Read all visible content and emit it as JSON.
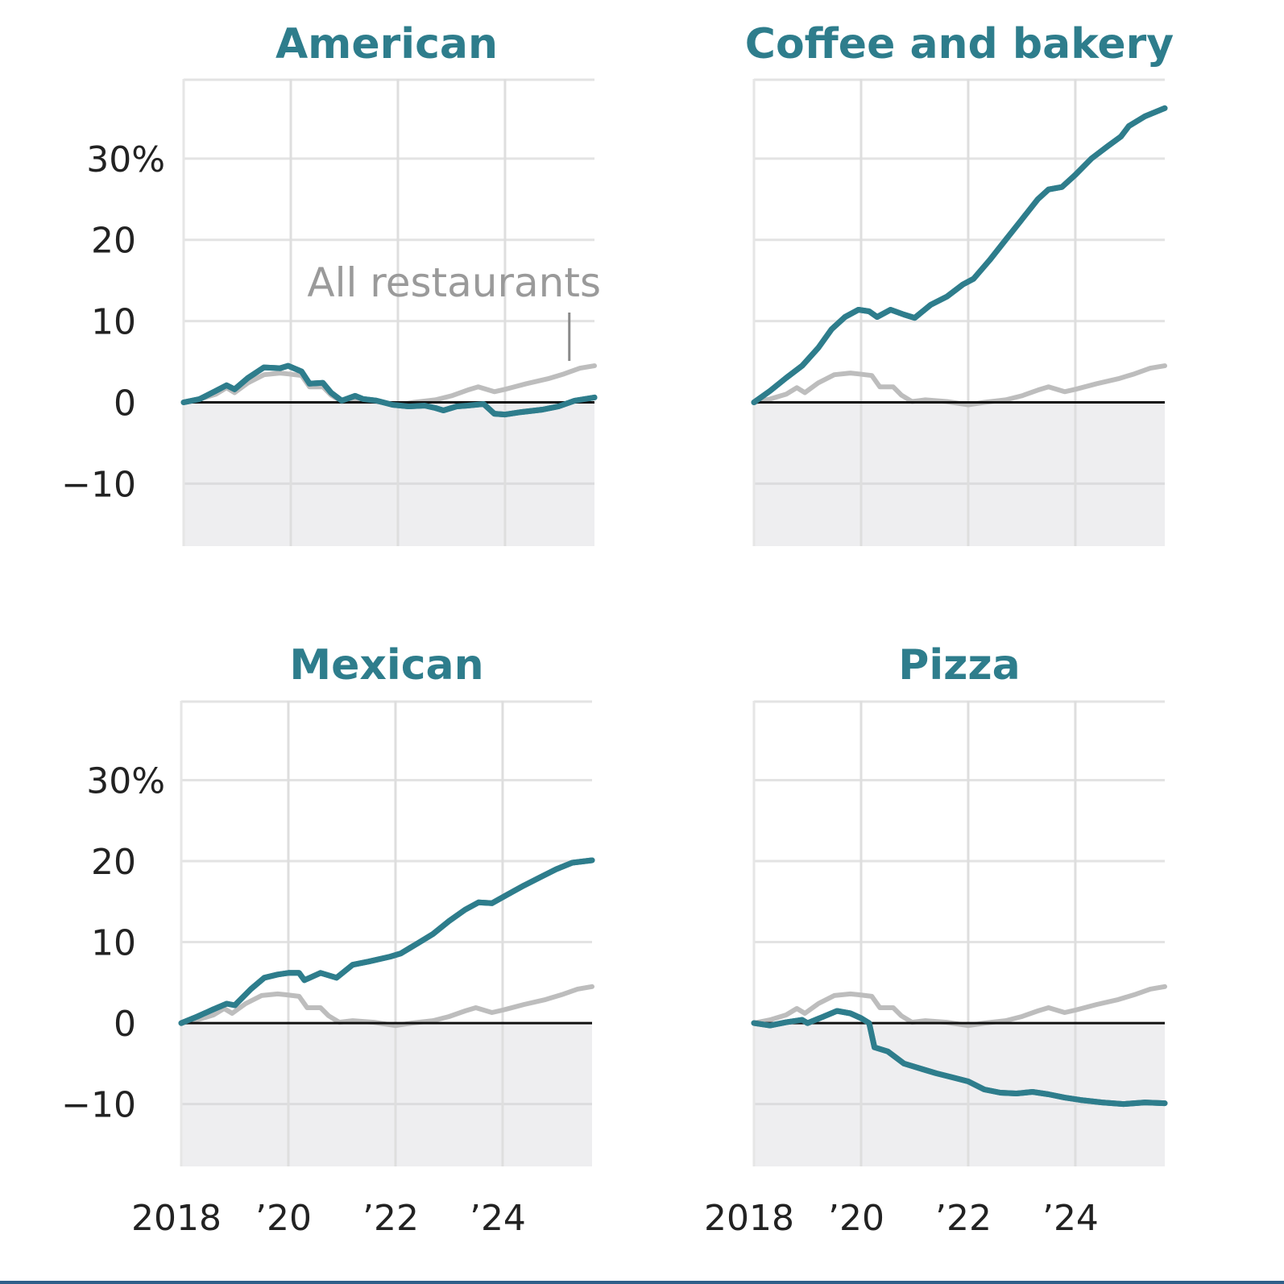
{
  "colors": {
    "accent": "#2e7d8c",
    "all_restaurants": "#bdbdbd",
    "annotation": "#9a9a9a",
    "grid": "#e3e3e3",
    "negative_fill": "#eeeef0",
    "zero_line": "#111111",
    "bottom_strip": "#2f5f8a"
  },
  "chart_data": [
    {
      "type": "line",
      "title": "American",
      "xlabel": "",
      "ylabel": "",
      "xlim": [
        2018,
        2025.67
      ],
      "ylim": [
        -17.7,
        39.8
      ],
      "y_ticks": [
        30,
        20,
        10,
        0,
        -10
      ],
      "y_tick_labels": [
        "30%",
        "20",
        "10",
        "0",
        "−10"
      ],
      "x_ticks": [
        2018,
        2020,
        2022,
        2024
      ],
      "x_tick_labels": [
        "2018",
        "’20",
        "’22",
        "’24"
      ],
      "grid": true,
      "annotation": {
        "text": "All restaurants",
        "x": 2025.2,
        "y": 4.5
      },
      "series": [
        {
          "name": "American",
          "points": [
            [
              2018,
              0
            ],
            [
              2018.3,
              0.4
            ],
            [
              2018.6,
              1.4
            ],
            [
              2018.8,
              2.1
            ],
            [
              2018.95,
              1.6
            ],
            [
              2019.2,
              3.0
            ],
            [
              2019.5,
              4.3
            ],
            [
              2019.8,
              4.2
            ],
            [
              2019.95,
              4.5
            ],
            [
              2020.2,
              3.8
            ],
            [
              2020.35,
              2.3
            ],
            [
              2020.6,
              2.4
            ],
            [
              2020.75,
              1.2
            ],
            [
              2020.95,
              0.2
            ],
            [
              2021.2,
              0.8
            ],
            [
              2021.35,
              0.4
            ],
            [
              2021.6,
              0.2
            ],
            [
              2021.9,
              -0.3
            ],
            [
              2022.2,
              -0.5
            ],
            [
              2022.5,
              -0.4
            ],
            [
              2022.7,
              -0.7
            ],
            [
              2022.85,
              -1.0
            ],
            [
              2023.1,
              -0.5
            ],
            [
              2023.3,
              -0.4
            ],
            [
              2023.6,
              -0.2
            ],
            [
              2023.8,
              -1.4
            ],
            [
              2024.0,
              -1.5
            ],
            [
              2024.3,
              -1.2
            ],
            [
              2024.7,
              -0.9
            ],
            [
              2025.0,
              -0.5
            ],
            [
              2025.3,
              0.2
            ],
            [
              2025.67,
              0.6
            ]
          ]
        },
        {
          "name": "All restaurants",
          "points": [
            [
              2018,
              0
            ],
            [
              2018.3,
              0.4
            ],
            [
              2018.6,
              1.0
            ],
            [
              2018.8,
              1.8
            ],
            [
              2018.95,
              1.2
            ],
            [
              2019.2,
              2.4
            ],
            [
              2019.5,
              3.4
            ],
            [
              2019.8,
              3.6
            ],
            [
              2019.95,
              3.5
            ],
            [
              2020.2,
              3.3
            ],
            [
              2020.35,
              1.9
            ],
            [
              2020.6,
              1.9
            ],
            [
              2020.75,
              0.9
            ],
            [
              2020.95,
              0.1
            ],
            [
              2021.2,
              0.3
            ],
            [
              2021.6,
              0.1
            ],
            [
              2021.9,
              -0.2
            ],
            [
              2022.0,
              -0.3
            ],
            [
              2022.3,
              0
            ],
            [
              2022.7,
              0.3
            ],
            [
              2023.0,
              0.8
            ],
            [
              2023.3,
              1.5
            ],
            [
              2023.5,
              1.9
            ],
            [
              2023.8,
              1.3
            ],
            [
              2024.0,
              1.6
            ],
            [
              2024.4,
              2.3
            ],
            [
              2024.8,
              2.9
            ],
            [
              2025.1,
              3.5
            ],
            [
              2025.4,
              4.2
            ],
            [
              2025.67,
              4.5
            ]
          ]
        }
      ]
    },
    {
      "type": "line",
      "title": "Coffee and bakery",
      "xlabel": "",
      "ylabel": "",
      "xlim": [
        2018,
        2025.67
      ],
      "ylim": [
        -17.7,
        39.8
      ],
      "y_ticks": [
        30,
        20,
        10,
        0,
        -10
      ],
      "x_ticks": [
        2018,
        2020,
        2022,
        2024
      ],
      "grid": true,
      "series": [
        {
          "name": "Coffee and bakery",
          "points": [
            [
              2018,
              0
            ],
            [
              2018.3,
              1.4
            ],
            [
              2018.6,
              3.0
            ],
            [
              2018.9,
              4.5
            ],
            [
              2019.2,
              6.7
            ],
            [
              2019.45,
              9.0
            ],
            [
              2019.7,
              10.5
            ],
            [
              2019.95,
              11.4
            ],
            [
              2020.15,
              11.2
            ],
            [
              2020.3,
              10.5
            ],
            [
              2020.55,
              11.4
            ],
            [
              2020.8,
              10.8
            ],
            [
              2021.0,
              10.4
            ],
            [
              2021.3,
              12.0
            ],
            [
              2021.6,
              13.0
            ],
            [
              2021.9,
              14.5
            ],
            [
              2022.1,
              15.2
            ],
            [
              2022.4,
              17.5
            ],
            [
              2022.7,
              20.0
            ],
            [
              2023.0,
              22.5
            ],
            [
              2023.3,
              25.0
            ],
            [
              2023.5,
              26.2
            ],
            [
              2023.75,
              26.5
            ],
            [
              2024.0,
              28.0
            ],
            [
              2024.3,
              30.0
            ],
            [
              2024.6,
              31.5
            ],
            [
              2024.85,
              32.7
            ],
            [
              2025.0,
              34.0
            ],
            [
              2025.3,
              35.2
            ],
            [
              2025.67,
              36.2
            ]
          ]
        },
        {
          "name": "All restaurants",
          "points": [
            [
              2018,
              0
            ],
            [
              2018.3,
              0.4
            ],
            [
              2018.6,
              1.0
            ],
            [
              2018.8,
              1.8
            ],
            [
              2018.95,
              1.2
            ],
            [
              2019.2,
              2.4
            ],
            [
              2019.5,
              3.4
            ],
            [
              2019.8,
              3.6
            ],
            [
              2019.95,
              3.5
            ],
            [
              2020.2,
              3.3
            ],
            [
              2020.35,
              1.9
            ],
            [
              2020.6,
              1.9
            ],
            [
              2020.75,
              0.9
            ],
            [
              2020.95,
              0.1
            ],
            [
              2021.2,
              0.3
            ],
            [
              2021.6,
              0.1
            ],
            [
              2021.9,
              -0.2
            ],
            [
              2022.0,
              -0.3
            ],
            [
              2022.3,
              0
            ],
            [
              2022.7,
              0.3
            ],
            [
              2023.0,
              0.8
            ],
            [
              2023.3,
              1.5
            ],
            [
              2023.5,
              1.9
            ],
            [
              2023.8,
              1.3
            ],
            [
              2024.0,
              1.6
            ],
            [
              2024.4,
              2.3
            ],
            [
              2024.8,
              2.9
            ],
            [
              2025.1,
              3.5
            ],
            [
              2025.4,
              4.2
            ],
            [
              2025.67,
              4.5
            ]
          ]
        }
      ]
    },
    {
      "type": "line",
      "title": "Mexican",
      "xlabel": "",
      "ylabel": "",
      "xlim": [
        2018,
        2025.67
      ],
      "ylim": [
        -17.7,
        39.8
      ],
      "y_ticks": [
        30,
        20,
        10,
        0,
        -10
      ],
      "y_tick_labels": [
        "30%",
        "20",
        "10",
        "0",
        "−10"
      ],
      "x_ticks": [
        2018,
        2020,
        2022,
        2024
      ],
      "x_tick_labels": [
        "2018",
        "’20",
        "’22",
        "’24"
      ],
      "grid": true,
      "series": [
        {
          "name": "Mexican",
          "points": [
            [
              2018,
              0
            ],
            [
              2018.3,
              0.8
            ],
            [
              2018.6,
              1.7
            ],
            [
              2018.85,
              2.4
            ],
            [
              2019.0,
              2.2
            ],
            [
              2019.3,
              4.2
            ],
            [
              2019.55,
              5.6
            ],
            [
              2019.8,
              6.0
            ],
            [
              2020.0,
              6.2
            ],
            [
              2020.2,
              6.2
            ],
            [
              2020.3,
              5.3
            ],
            [
              2020.6,
              6.2
            ],
            [
              2020.9,
              5.6
            ],
            [
              2021.2,
              7.2
            ],
            [
              2021.5,
              7.6
            ],
            [
              2021.9,
              8.2
            ],
            [
              2022.1,
              8.6
            ],
            [
              2022.4,
              9.8
            ],
            [
              2022.7,
              11.0
            ],
            [
              2023.0,
              12.6
            ],
            [
              2023.3,
              14.0
            ],
            [
              2023.55,
              14.9
            ],
            [
              2023.8,
              14.8
            ],
            [
              2024.1,
              15.9
            ],
            [
              2024.4,
              17.0
            ],
            [
              2024.7,
              18.0
            ],
            [
              2025.0,
              19.0
            ],
            [
              2025.3,
              19.8
            ],
            [
              2025.67,
              20.1
            ]
          ]
        },
        {
          "name": "All restaurants",
          "points": [
            [
              2018,
              0
            ],
            [
              2018.3,
              0.4
            ],
            [
              2018.6,
              1.0
            ],
            [
              2018.8,
              1.8
            ],
            [
              2018.95,
              1.2
            ],
            [
              2019.2,
              2.4
            ],
            [
              2019.5,
              3.4
            ],
            [
              2019.8,
              3.6
            ],
            [
              2019.95,
              3.5
            ],
            [
              2020.2,
              3.3
            ],
            [
              2020.35,
              1.9
            ],
            [
              2020.6,
              1.9
            ],
            [
              2020.75,
              0.9
            ],
            [
              2020.95,
              0.1
            ],
            [
              2021.2,
              0.3
            ],
            [
              2021.6,
              0.1
            ],
            [
              2021.9,
              -0.2
            ],
            [
              2022.0,
              -0.3
            ],
            [
              2022.3,
              0
            ],
            [
              2022.7,
              0.3
            ],
            [
              2023.0,
              0.8
            ],
            [
              2023.3,
              1.5
            ],
            [
              2023.5,
              1.9
            ],
            [
              2023.8,
              1.3
            ],
            [
              2024.0,
              1.6
            ],
            [
              2024.4,
              2.3
            ],
            [
              2024.8,
              2.9
            ],
            [
              2025.1,
              3.5
            ],
            [
              2025.4,
              4.2
            ],
            [
              2025.67,
              4.5
            ]
          ]
        }
      ]
    },
    {
      "type": "line",
      "title": "Pizza",
      "xlabel": "",
      "ylabel": "",
      "xlim": [
        2018,
        2025.67
      ],
      "ylim": [
        -17.7,
        39.8
      ],
      "y_ticks": [
        30,
        20,
        10,
        0,
        -10
      ],
      "x_ticks": [
        2018,
        2020,
        2022,
        2024
      ],
      "x_tick_labels": [
        "2018",
        "’20",
        "’22",
        "’24"
      ],
      "grid": true,
      "series": [
        {
          "name": "Pizza",
          "points": [
            [
              2018,
              0
            ],
            [
              2018.3,
              -0.3
            ],
            [
              2018.6,
              0.1
            ],
            [
              2018.9,
              0.4
            ],
            [
              2019.0,
              0
            ],
            [
              2019.3,
              0.8
            ],
            [
              2019.55,
              1.5
            ],
            [
              2019.8,
              1.2
            ],
            [
              2020.0,
              0.6
            ],
            [
              2020.15,
              0
            ],
            [
              2020.25,
              -3.0
            ],
            [
              2020.5,
              -3.5
            ],
            [
              2020.8,
              -5.0
            ],
            [
              2021.1,
              -5.6
            ],
            [
              2021.4,
              -6.2
            ],
            [
              2021.7,
              -6.7
            ],
            [
              2022.0,
              -7.2
            ],
            [
              2022.3,
              -8.2
            ],
            [
              2022.6,
              -8.6
            ],
            [
              2022.9,
              -8.7
            ],
            [
              2023.2,
              -8.5
            ],
            [
              2023.5,
              -8.8
            ],
            [
              2023.8,
              -9.2
            ],
            [
              2024.1,
              -9.5
            ],
            [
              2024.5,
              -9.8
            ],
            [
              2024.9,
              -10.0
            ],
            [
              2025.3,
              -9.8
            ],
            [
              2025.67,
              -9.9
            ]
          ]
        },
        {
          "name": "All restaurants",
          "points": [
            [
              2018,
              0
            ],
            [
              2018.3,
              0.4
            ],
            [
              2018.6,
              1.0
            ],
            [
              2018.8,
              1.8
            ],
            [
              2018.95,
              1.2
            ],
            [
              2019.2,
              2.4
            ],
            [
              2019.5,
              3.4
            ],
            [
              2019.8,
              3.6
            ],
            [
              2019.95,
              3.5
            ],
            [
              2020.2,
              3.3
            ],
            [
              2020.35,
              1.9
            ],
            [
              2020.6,
              1.9
            ],
            [
              2020.75,
              0.9
            ],
            [
              2020.95,
              0.1
            ],
            [
              2021.2,
              0.3
            ],
            [
              2021.6,
              0.1
            ],
            [
              2021.9,
              -0.2
            ],
            [
              2022.0,
              -0.3
            ],
            [
              2022.3,
              0
            ],
            [
              2022.7,
              0.3
            ],
            [
              2023.0,
              0.8
            ],
            [
              2023.3,
              1.5
            ],
            [
              2023.5,
              1.9
            ],
            [
              2023.8,
              1.3
            ],
            [
              2024.0,
              1.6
            ],
            [
              2024.4,
              2.3
            ],
            [
              2024.8,
              2.9
            ],
            [
              2025.1,
              3.5
            ],
            [
              2025.4,
              4.2
            ],
            [
              2025.67,
              4.5
            ]
          ]
        }
      ]
    }
  ]
}
